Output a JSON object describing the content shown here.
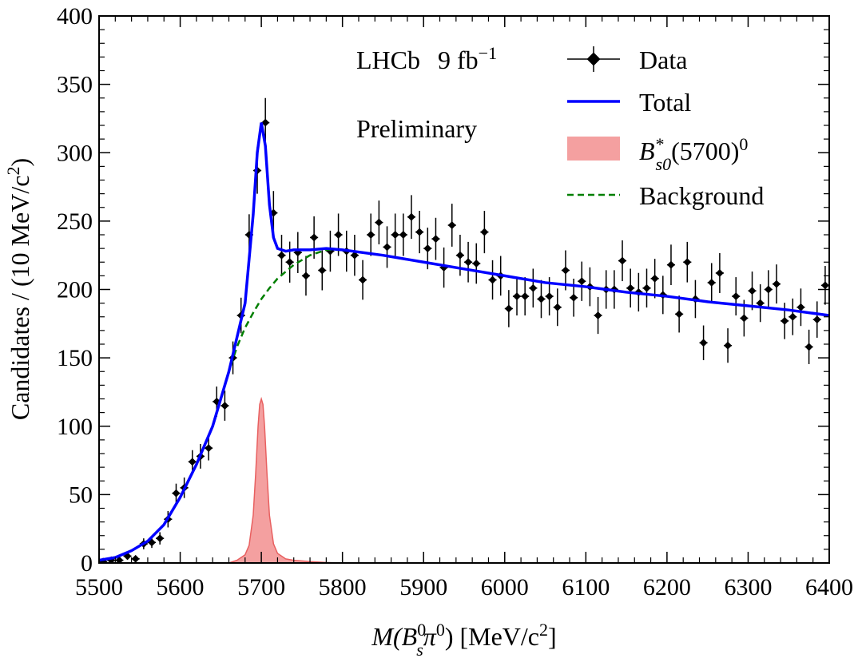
{
  "chart_data": {
    "type": "scatter",
    "xlim": [
      5500,
      6400
    ],
    "ylim": [
      0,
      400
    ],
    "xticks": [
      5500,
      5600,
      5700,
      5800,
      5900,
      6000,
      6100,
      6200,
      6300,
      6400
    ],
    "yticks": [
      0,
      50,
      100,
      150,
      200,
      250,
      300,
      350,
      400
    ],
    "xlabel": {
      "pre": "M(B",
      "sup": "0",
      "sub": "s",
      "mid": "π",
      "sup2": "0",
      "post": ") [MeV/c",
      "sup3": "2",
      "end": "]"
    },
    "ylabel": {
      "pre": "Candidates / (10 MeV/c",
      "sup": "2",
      "post": ")"
    },
    "annotations": {
      "experiment": "LHCb",
      "lumi": "9 fb",
      "lumi_sup": "−1",
      "status": "Preliminary"
    },
    "legend": {
      "position": "top-right",
      "data": "Data",
      "total": "Total",
      "signal_base": "B",
      "signal_sup": "*",
      "signal_sub": "s0",
      "signal_mid": "(5700)",
      "signal_sup2": "0",
      "background": "Background"
    },
    "colors": {
      "total": "#0000ff",
      "signal_fill": "#f4a0a0",
      "signal_line": "#e86060",
      "background": "#007f00",
      "data": "#000000"
    },
    "grid": false,
    "data_points": {
      "x": [
        5505,
        5515,
        5525,
        5535,
        5545,
        5555,
        5565,
        5575,
        5585,
        5595,
        5605,
        5615,
        5625,
        5635,
        5645,
        5655,
        5665,
        5675,
        5685,
        5695,
        5705,
        5715,
        5725,
        5735,
        5745,
        5755,
        5765,
        5775,
        5785,
        5795,
        5805,
        5815,
        5825,
        5835,
        5845,
        5855,
        5865,
        5875,
        5885,
        5895,
        5905,
        5915,
        5925,
        5935,
        5945,
        5955,
        5965,
        5975,
        5985,
        5995,
        6005,
        6015,
        6025,
        6035,
        6045,
        6055,
        6065,
        6075,
        6085,
        6095,
        6105,
        6115,
        6125,
        6135,
        6145,
        6155,
        6165,
        6175,
        6185,
        6195,
        6205,
        6215,
        6225,
        6235,
        6245,
        6255,
        6265,
        6275,
        6285,
        6295,
        6305,
        6315,
        6325,
        6335,
        6345,
        6355,
        6365,
        6375,
        6385,
        6395
      ],
      "y": [
        1,
        2,
        2,
        5,
        3,
        14,
        15,
        18,
        32,
        51,
        55,
        74,
        78,
        84,
        118,
        115,
        150,
        181,
        240,
        287,
        322,
        256,
        225,
        220,
        227,
        210,
        238,
        214,
        228,
        240,
        228,
        225,
        207,
        240,
        249,
        231,
        240,
        240,
        253,
        242,
        230,
        237,
        216,
        247,
        225,
        220,
        219,
        242,
        207,
        210,
        186,
        195,
        195,
        201,
        193,
        195,
        187,
        214,
        194,
        206,
        202,
        181,
        200,
        200,
        221,
        201,
        198,
        201,
        208,
        196,
        218,
        182,
        220,
        193,
        161,
        205,
        212,
        159,
        195,
        179,
        199,
        190,
        200,
        204,
        177,
        180,
        187,
        158,
        178,
        203
      ],
      "yerr": [
        1,
        1.5,
        1.5,
        2.5,
        2,
        4,
        4,
        4.5,
        6,
        7,
        7.5,
        8.5,
        9,
        9,
        11,
        11,
        12,
        13,
        15,
        17,
        18,
        16,
        15,
        15,
        15,
        14.5,
        15.5,
        14.6,
        15,
        15.5,
        15,
        15,
        14.5,
        15.5,
        16,
        15.2,
        15.5,
        15.5,
        16,
        15.5,
        15.2,
        15.4,
        14.7,
        15.7,
        15,
        14.8,
        14.8,
        15.5,
        14.4,
        14.5,
        13.6,
        14,
        14,
        14.2,
        13.9,
        14,
        13.7,
        14.6,
        13.9,
        14.4,
        14.2,
        13.5,
        14.1,
        14.1,
        14.9,
        14.2,
        14.1,
        14.2,
        14.4,
        14,
        14.8,
        13.5,
        14.8,
        13.9,
        12.7,
        14.3,
        14.6,
        12.6,
        14,
        13.4,
        14.1,
        13.8,
        14.1,
        14.3,
        13.3,
        13.4,
        13.7,
        12.6,
        13.3,
        14.2
      ]
    },
    "total_curve": {
      "x": [
        5500,
        5520,
        5540,
        5560,
        5580,
        5600,
        5620,
        5640,
        5660,
        5670,
        5680,
        5690,
        5695,
        5700,
        5705,
        5710,
        5715,
        5720,
        5730,
        5740,
        5760,
        5780,
        5800,
        5850,
        5900,
        5950,
        6000,
        6050,
        6100,
        6150,
        6200,
        6250,
        6300,
        6350,
        6400
      ],
      "y": [
        2,
        4,
        9,
        16,
        28,
        48,
        72,
        100,
        140,
        165,
        190,
        255,
        300,
        322,
        305,
        262,
        238,
        230,
        228,
        229,
        229,
        230,
        229,
        225,
        220,
        215,
        210,
        205,
        202,
        198,
        195,
        191,
        188,
        185,
        181
      ]
    },
    "background_curve": {
      "x": [
        5500,
        5520,
        5540,
        5560,
        5580,
        5600,
        5620,
        5640,
        5660,
        5670,
        5680,
        5690,
        5700,
        5710,
        5720,
        5730,
        5740,
        5760,
        5780,
        5800,
        5850,
        5900,
        5950,
        6000,
        6050,
        6100,
        6150,
        6200,
        6250,
        6300,
        6350,
        6400
      ],
      "y": [
        2,
        4,
        9,
        16,
        28,
        48,
        72,
        100,
        140,
        158,
        172,
        183,
        193,
        201,
        208,
        213,
        218,
        225,
        229,
        229,
        225,
        220,
        215,
        210,
        205,
        202,
        198,
        195,
        191,
        188,
        185,
        181
      ]
    },
    "signal_curve": {
      "x": [
        5660,
        5670,
        5680,
        5685,
        5690,
        5693,
        5696,
        5698,
        5700,
        5702,
        5704,
        5707,
        5710,
        5715,
        5720,
        5730,
        5740,
        5760,
        5780,
        5800
      ],
      "y": [
        0,
        2,
        6,
        13,
        35,
        65,
        100,
        116,
        120,
        116,
        100,
        65,
        35,
        14,
        7,
        3,
        2,
        1,
        0.4,
        0
      ]
    }
  }
}
